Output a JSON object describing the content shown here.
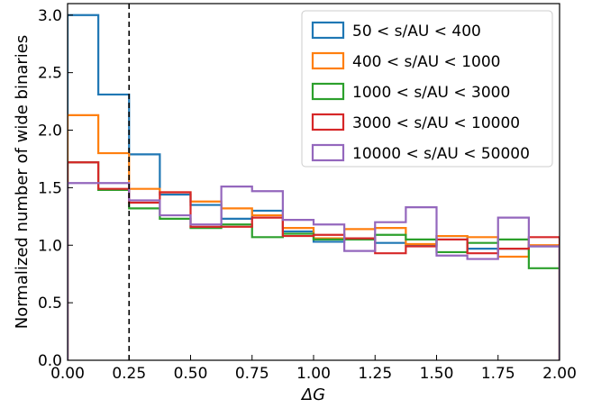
{
  "chart_data": {
    "type": "step",
    "xlabel": "ΔG",
    "ylabel": "Normalized number of wide binaries",
    "xlim": [
      0.0,
      2.0
    ],
    "ylim": [
      0.0,
      3.1
    ],
    "x_ticks": [
      "0.00",
      "0.25",
      "0.50",
      "0.75",
      "1.00",
      "1.25",
      "1.50",
      "1.75",
      "2.00"
    ],
    "y_ticks": [
      "0.0",
      "0.5",
      "1.0",
      "1.5",
      "2.0",
      "2.5",
      "3.0"
    ],
    "bin_edges": [
      0.0,
      0.125,
      0.25,
      0.375,
      0.5,
      0.625,
      0.75,
      0.875,
      1.0,
      1.125,
      1.25,
      1.375,
      1.5,
      1.625,
      1.75,
      1.875,
      2.0
    ],
    "reference_line": {
      "x": 0.25,
      "style": "dashed"
    },
    "legend_position": "top-right",
    "grid": false,
    "series": [
      {
        "name": "50 < s/AU < 400",
        "color": "#1f77b4",
        "values": [
          3.0,
          2.31,
          1.79,
          1.44,
          1.35,
          1.23,
          1.3,
          1.12,
          1.03,
          1.05,
          1.02,
          1.0,
          1.08,
          0.97,
          0.97,
          0.99
        ]
      },
      {
        "name": "400 < s/AU < 1000",
        "color": "#ff7f0e",
        "values": [
          2.13,
          1.8,
          1.49,
          1.46,
          1.38,
          1.32,
          1.26,
          1.15,
          1.06,
          1.14,
          1.15,
          1.01,
          1.08,
          1.07,
          0.9,
          1.0
        ]
      },
      {
        "name": "1000 < s/AU < 3000",
        "color": "#2ca02c",
        "values": [
          1.72,
          1.48,
          1.32,
          1.23,
          1.15,
          1.18,
          1.07,
          1.1,
          1.05,
          1.05,
          1.09,
          1.05,
          0.94,
          1.02,
          1.05,
          0.8
        ]
      },
      {
        "name": "3000 < s/AU < 10000",
        "color": "#d62728",
        "values": [
          1.72,
          1.49,
          1.37,
          1.46,
          1.16,
          1.16,
          1.24,
          1.08,
          1.09,
          1.06,
          0.93,
          0.99,
          1.05,
          0.93,
          0.97,
          1.07
        ]
      },
      {
        "name": "10000 < s/AU < 50000",
        "color": "#9467bd",
        "values": [
          1.54,
          1.54,
          1.39,
          1.26,
          1.18,
          1.51,
          1.47,
          1.22,
          1.18,
          0.95,
          1.2,
          1.33,
          0.91,
          0.88,
          1.24,
          0.99
        ]
      }
    ]
  }
}
